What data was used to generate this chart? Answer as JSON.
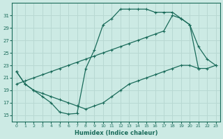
{
  "xlabel": "Humidex (Indice chaleur)",
  "bg_color": "#cceae4",
  "grid_color": "#b8d8d2",
  "line_color": "#1a6b5a",
  "xlim": [
    -0.5,
    23.5
  ],
  "ylim": [
    14,
    33
  ],
  "yticks": [
    15,
    17,
    19,
    21,
    23,
    25,
    27,
    29,
    31
  ],
  "xticks": [
    0,
    1,
    2,
    3,
    4,
    5,
    6,
    7,
    8,
    9,
    10,
    11,
    12,
    13,
    14,
    15,
    16,
    17,
    18,
    19,
    20,
    21,
    22,
    23
  ],
  "line1_x": [
    0,
    1,
    2,
    3,
    4,
    5,
    6,
    7,
    8,
    9,
    10,
    11,
    12,
    13,
    14,
    15,
    16,
    17,
    18,
    19,
    20,
    21,
    22,
    23
  ],
  "line1_y": [
    22,
    20,
    19,
    18,
    17,
    15.5,
    15.2,
    15.3,
    22.5,
    25.5,
    29.5,
    30.5,
    32,
    32,
    32,
    32,
    31.5,
    31.5,
    31.5,
    30.5,
    29.5,
    26,
    24,
    23
  ],
  "line2_x": [
    0,
    1,
    2,
    3,
    4,
    5,
    6,
    7,
    8,
    9,
    10,
    11,
    12,
    13,
    14,
    15,
    16,
    17,
    18,
    19,
    20,
    21
  ],
  "line2_y": [
    20,
    20.5,
    21,
    21.5,
    22,
    22.5,
    23,
    23.5,
    24,
    24.5,
    25,
    25.5,
    26,
    26.5,
    27,
    27.5,
    28,
    28.5,
    31,
    30.5,
    29.5,
    22.5
  ],
  "line3_x": [
    0,
    1,
    2,
    3,
    4,
    5,
    6,
    7,
    8,
    9,
    10,
    11,
    12,
    13,
    14,
    15,
    16,
    17,
    18,
    19,
    20,
    21,
    22,
    23
  ],
  "line3_y": [
    22,
    20,
    19,
    18.5,
    18,
    17.5,
    17,
    16.5,
    16,
    16.5,
    17,
    18,
    19,
    20,
    20.5,
    21,
    21.5,
    22,
    22.5,
    23,
    23,
    22.5,
    22.5,
    23
  ]
}
